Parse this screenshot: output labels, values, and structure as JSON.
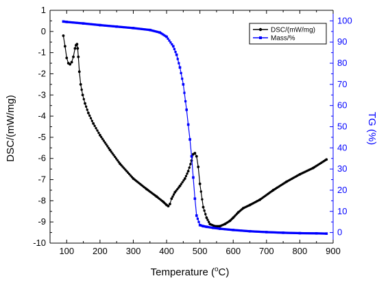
{
  "chart_data": {
    "type": "line",
    "title": "",
    "xlabel": "Temperature (°C)",
    "ylabel_left": "DSC/(mW/mg)",
    "ylabel_right": "TG (%)",
    "xlim": [
      50,
      900
    ],
    "ylim_left": [
      -10,
      1
    ],
    "ylim_right": [
      -5,
      105
    ],
    "x_ticks": [
      100,
      200,
      300,
      400,
      500,
      600,
      700,
      800,
      900
    ],
    "y_left_ticks": [
      1,
      0,
      -1,
      -2,
      -3,
      -4,
      -5,
      -6,
      -7,
      -8,
      -9,
      -10
    ],
    "y_right_ticks": [
      100,
      90,
      80,
      70,
      60,
      50,
      40,
      30,
      20,
      10,
      0
    ],
    "grid": false,
    "legend_position": "top-right",
    "colors": {
      "left_axis": "#000000",
      "right_axis": "#0000ff"
    },
    "series": [
      {
        "name": "DSC/(mW/mg)",
        "axis": "left",
        "color": "#000000",
        "marker": "circle",
        "x": [
          90,
          95,
          100,
          105,
          110,
          115,
          120,
          125,
          128,
          131,
          133,
          135,
          138,
          142,
          148,
          155,
          165,
          180,
          200,
          230,
          260,
          300,
          340,
          370,
          390,
          400,
          405,
          410,
          415,
          425,
          440,
          455,
          465,
          475,
          480,
          485,
          490,
          495,
          500,
          510,
          520,
          530,
          545,
          560,
          575,
          590,
          600,
          615,
          630,
          650,
          680,
          720,
          760,
          800,
          840,
          880
        ],
        "y": [
          -0.2,
          -0.7,
          -1.25,
          -1.5,
          -1.55,
          -1.45,
          -1.2,
          -0.8,
          -0.65,
          -0.6,
          -0.8,
          -1.2,
          -1.9,
          -2.5,
          -3.0,
          -3.4,
          -3.85,
          -4.35,
          -4.9,
          -5.6,
          -6.25,
          -6.95,
          -7.45,
          -7.8,
          -8.05,
          -8.2,
          -8.25,
          -8.15,
          -7.9,
          -7.6,
          -7.3,
          -6.95,
          -6.6,
          -6.1,
          -5.8,
          -5.75,
          -5.9,
          -6.4,
          -7.2,
          -8.3,
          -8.8,
          -9.1,
          -9.2,
          -9.2,
          -9.1,
          -8.95,
          -8.8,
          -8.55,
          -8.35,
          -8.2,
          -7.95,
          -7.5,
          -7.1,
          -6.75,
          -6.45,
          -6.05
        ]
      },
      {
        "name": "Mass/%",
        "axis": "right",
        "color": "#0000ff",
        "marker": "square",
        "x": [
          90,
          100,
          150,
          200,
          250,
          300,
          350,
          380,
          400,
          420,
          430,
          440,
          450,
          460,
          465,
          470,
          475,
          480,
          485,
          490,
          500,
          510,
          520,
          540,
          560,
          600,
          650,
          700,
          750,
          800,
          850,
          880
        ],
        "y": [
          99.7,
          99.5,
          98.8,
          98.0,
          97.3,
          96.6,
          95.7,
          94.5,
          92.5,
          88.0,
          84.0,
          78.0,
          70.0,
          58.0,
          51.0,
          44.0,
          36.0,
          26.0,
          16.0,
          8.0,
          3.5,
          3.0,
          2.7,
          2.2,
          1.8,
          1.2,
          0.6,
          0.2,
          -0.1,
          -0.3,
          -0.4,
          -0.5
        ]
      }
    ]
  },
  "axes_text": {
    "x_title_main": "Temperature (",
    "x_title_degree": "o",
    "x_title_tail": "C)",
    "y_left_title": "DSC/(mW/mg)",
    "y_right_title": "TG (%)"
  }
}
